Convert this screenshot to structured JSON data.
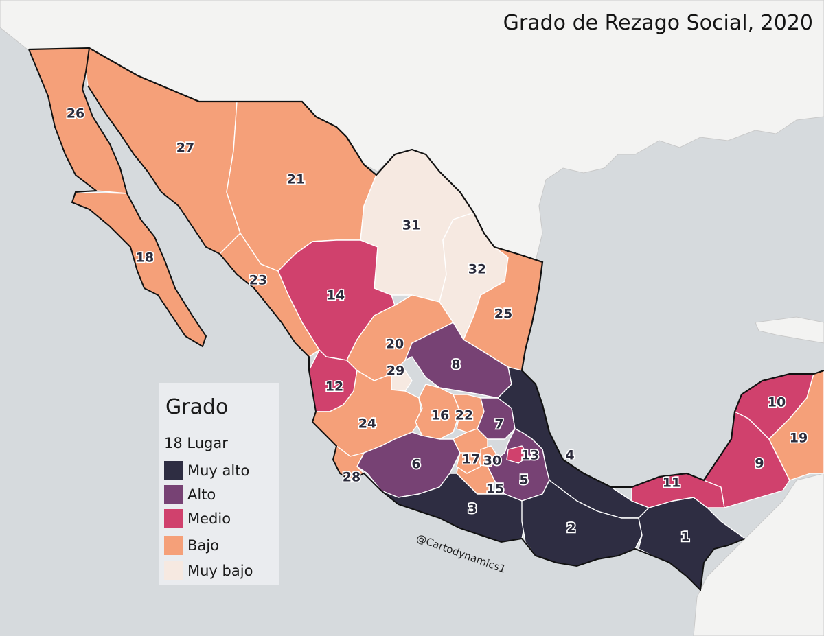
{
  "title": "Grado de Rezago Social, 2020",
  "legend": {
    "title": "Grado",
    "subtitle": "18 Lugar",
    "items": [
      {
        "label": "Muy alto",
        "color": "#2e2d42"
      },
      {
        "label": "Alto",
        "color": "#774274"
      },
      {
        "label": "Medio",
        "color": "#d0416d"
      },
      {
        "label": "Bajo",
        "color": "#f5a079"
      },
      {
        "label": "Muy bajo",
        "color": "#f6e9e1"
      }
    ]
  },
  "watermark": "@Cartodynamics1",
  "ranks": [
    1,
    2,
    3,
    4,
    5,
    6,
    7,
    8,
    9,
    10,
    11,
    12,
    13,
    14,
    15,
    16,
    17,
    18,
    19,
    20,
    21,
    22,
    23,
    24,
    25,
    26,
    27,
    28,
    29,
    30,
    31,
    32
  ],
  "regions": [
    {
      "rank": "1",
      "grado": "Muy alto"
    },
    {
      "rank": "2",
      "grado": "Muy alto"
    },
    {
      "rank": "3",
      "grado": "Muy alto"
    },
    {
      "rank": "4",
      "grado": "Muy alto"
    },
    {
      "rank": "5",
      "grado": "Alto"
    },
    {
      "rank": "6",
      "grado": "Alto"
    },
    {
      "rank": "7",
      "grado": "Alto"
    },
    {
      "rank": "8",
      "grado": "Alto"
    },
    {
      "rank": "9",
      "grado": "Medio"
    },
    {
      "rank": "10",
      "grado": "Medio"
    },
    {
      "rank": "11",
      "grado": "Medio"
    },
    {
      "rank": "12",
      "grado": "Medio"
    },
    {
      "rank": "13",
      "grado": "Medio"
    },
    {
      "rank": "14",
      "grado": "Medio"
    },
    {
      "rank": "15",
      "grado": "Bajo"
    },
    {
      "rank": "16",
      "grado": "Bajo"
    },
    {
      "rank": "17",
      "grado": "Bajo"
    },
    {
      "rank": "18",
      "grado": "Bajo"
    },
    {
      "rank": "19",
      "grado": "Bajo"
    },
    {
      "rank": "20",
      "grado": "Bajo"
    },
    {
      "rank": "21",
      "grado": "Bajo"
    },
    {
      "rank": "22",
      "grado": "Bajo"
    },
    {
      "rank": "23",
      "grado": "Bajo"
    },
    {
      "rank": "24",
      "grado": "Bajo"
    },
    {
      "rank": "25",
      "grado": "Bajo"
    },
    {
      "rank": "26",
      "grado": "Bajo"
    },
    {
      "rank": "27",
      "grado": "Bajo"
    },
    {
      "rank": "28",
      "grado": "Bajo"
    },
    {
      "rank": "29",
      "grado": "Muy bajo"
    },
    {
      "rank": "30",
      "grado": "Bajo"
    },
    {
      "rank": "31",
      "grado": "Muy bajo"
    },
    {
      "rank": "32",
      "grado": "Muy bajo"
    }
  ]
}
